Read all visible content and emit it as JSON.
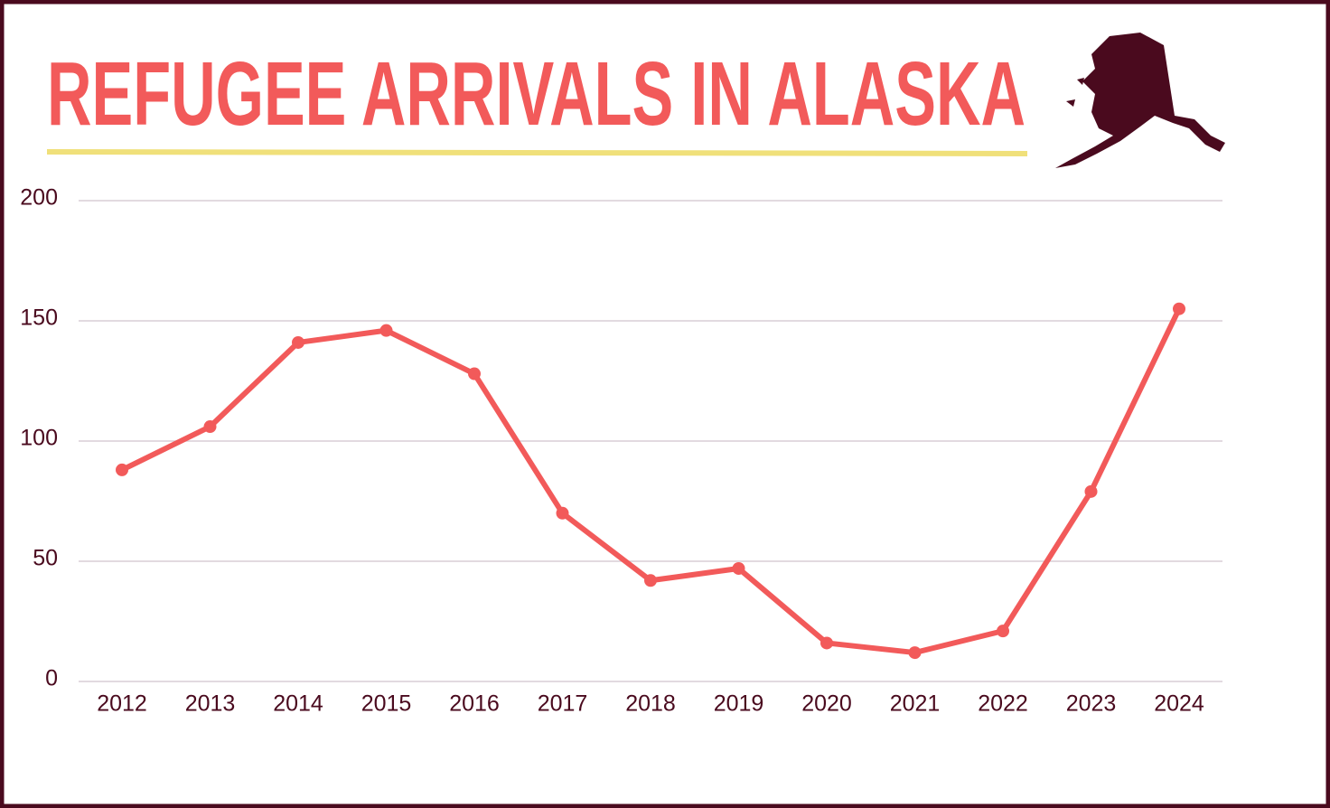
{
  "chart_data": {
    "type": "line",
    "title": "REFUGEE ARRIVALS IN ALASKA",
    "categories": [
      "2012",
      "2013",
      "2014",
      "2015",
      "2016",
      "2017",
      "2018",
      "2019",
      "2020",
      "2021",
      "2022",
      "2023",
      "2024"
    ],
    "values": [
      88,
      106,
      141,
      146,
      128,
      70,
      42,
      47,
      16,
      12,
      21,
      79,
      155
    ],
    "color": "#f25a5a",
    "ylim": [
      0,
      200
    ],
    "yticks": [
      0,
      50,
      100,
      150,
      200
    ],
    "grid": true
  }
}
